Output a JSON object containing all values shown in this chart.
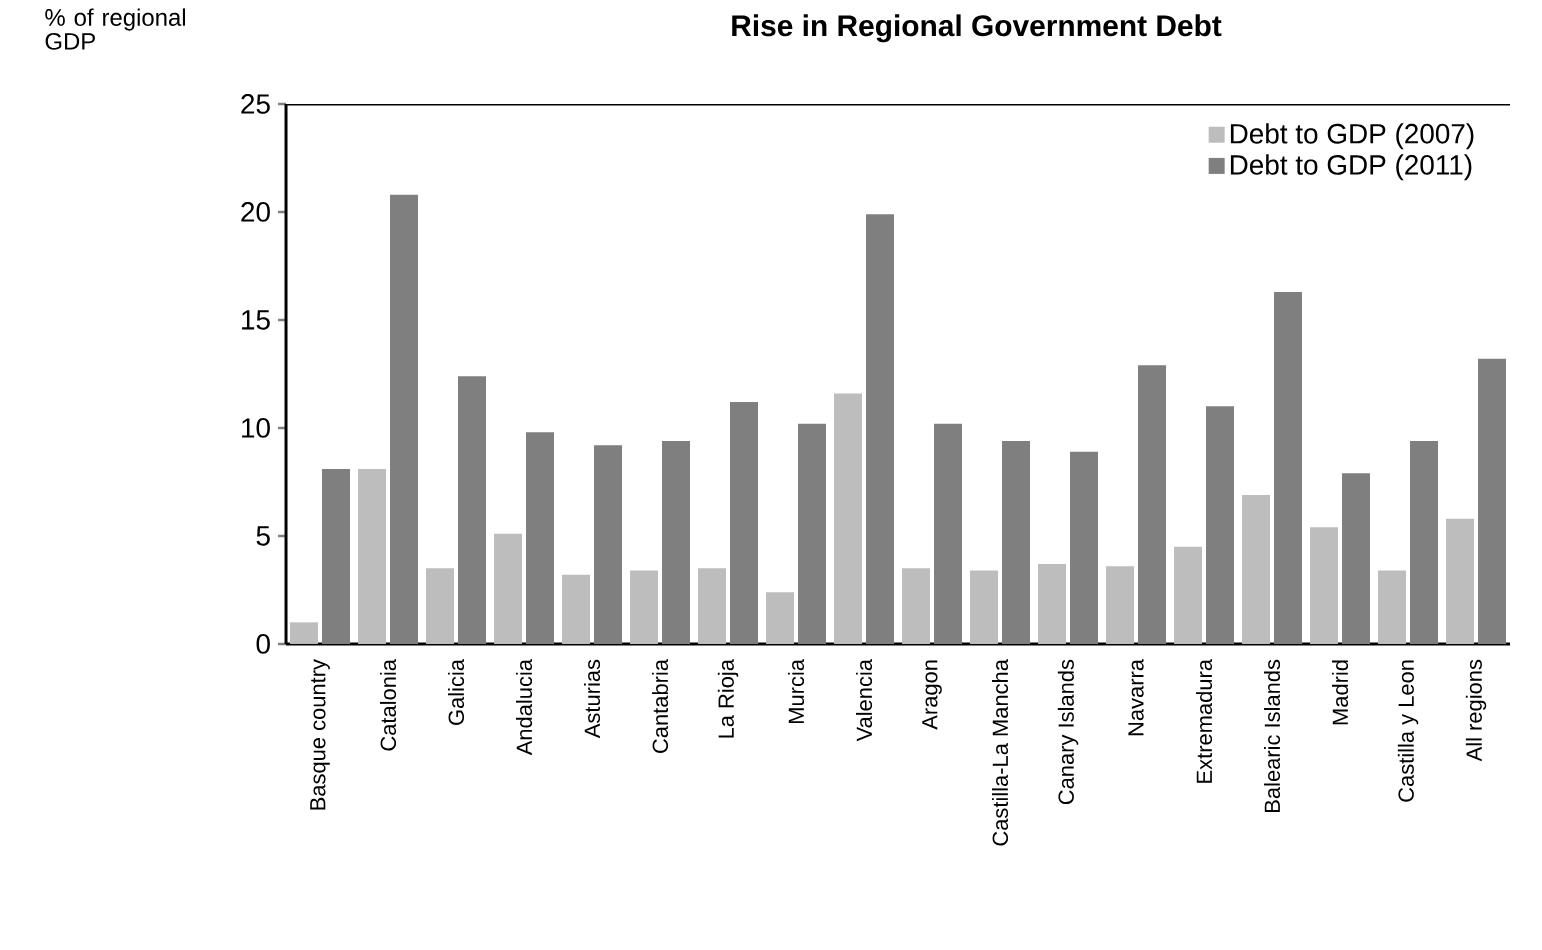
{
  "chart_data": {
    "type": "bar",
    "title": "Rise in Regional Government Debt",
    "ylabel": "% of regional GDP",
    "categories": [
      "Basque country",
      "Catalonia",
      "Galicia",
      "Andalucia",
      "Asturias",
      "Cantabria",
      "La Rioja",
      "Murcia",
      "Valencia",
      "Aragon",
      "Castilla-La Mancha",
      "Canary Islands",
      "Navarra",
      "Extremadura",
      "Balearic Islands",
      "Madrid",
      "Castilla y Leon",
      "All regions"
    ],
    "series": [
      {
        "name": "Debt to GDP (2007)",
        "color": "#bdbdbd",
        "values": [
          1.0,
          8.1,
          3.5,
          5.1,
          3.2,
          3.4,
          3.5,
          2.4,
          11.6,
          3.5,
          3.4,
          3.7,
          3.6,
          4.5,
          6.9,
          5.4,
          3.4,
          5.8
        ]
      },
      {
        "name": "Debt to GDP (2011)",
        "color": "#7f7f7f",
        "values": [
          8.1,
          20.8,
          12.4,
          9.8,
          9.2,
          9.4,
          11.2,
          10.2,
          19.9,
          10.2,
          9.4,
          8.9,
          12.9,
          11.0,
          16.3,
          7.9,
          9.4,
          13.2
        ]
      }
    ],
    "ylim": [
      0,
      25
    ],
    "yticks": [
      0,
      5,
      10,
      15,
      20,
      25
    ],
    "grid": false,
    "legend": "top right"
  }
}
